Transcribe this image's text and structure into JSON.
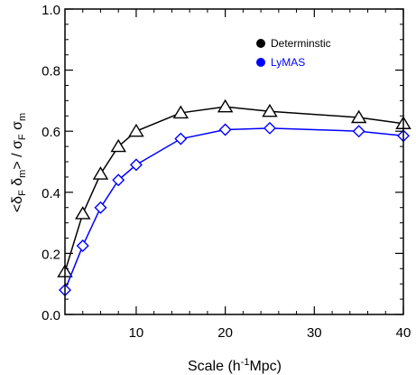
{
  "chart_data": {
    "type": "line",
    "xlabel_parts": [
      "Scale (h",
      "-1",
      "Mpc)"
    ],
    "ylabel_parts": [
      "<δ",
      "F",
      " δ",
      "m",
      "> / σ",
      "F",
      " σ",
      "m"
    ],
    "xlim": [
      2,
      40
    ],
    "ylim": [
      0,
      1.0
    ],
    "x_ticks": [
      10,
      20,
      30,
      40
    ],
    "x_tick_labels": [
      "10",
      "20",
      "30",
      "40"
    ],
    "y_ticks": [
      0.0,
      0.2,
      0.4,
      0.6,
      0.8,
      1.0
    ],
    "y_tick_labels": [
      "0.0",
      "0.2",
      "0.4",
      "0.6",
      "0.8",
      "1.0"
    ],
    "grid": false,
    "legend_position": "top-right",
    "series": [
      {
        "name": "Determinstic",
        "color": "#000000",
        "marker": "triangle",
        "x": [
          2,
          4,
          6,
          8,
          10,
          15,
          20,
          25,
          35,
          40
        ],
        "y": [
          0.14,
          0.33,
          0.46,
          0.55,
          0.6,
          0.66,
          0.68,
          0.665,
          0.645,
          0.625
        ]
      },
      {
        "name": "LyMAS",
        "color": "#0000ff",
        "marker": "diamond",
        "x": [
          2,
          4,
          6,
          8,
          10,
          15,
          20,
          25,
          35,
          40
        ],
        "y": [
          0.08,
          0.225,
          0.35,
          0.44,
          0.49,
          0.575,
          0.605,
          0.61,
          0.6,
          0.585
        ]
      }
    ]
  }
}
